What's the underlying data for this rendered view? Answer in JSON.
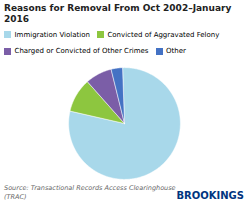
{
  "chart_data": {
    "type": "pie",
    "title": "Reasons for Removal From Oct 2002–January 2016",
    "categories": [
      "Immigration Violation",
      "Convicted of Aggravated Felony",
      "Charged or Convicted of Other Crimes",
      "Other"
    ],
    "values": [
      72,
      9,
      7,
      3
    ],
    "colors": [
      "#a8d8ea",
      "#8dc63f",
      "#7b5ea7",
      "#4472c4"
    ],
    "legend": "top",
    "annotations": [
      "Source: Transactional Records Access Clearinghouse\n(TRAC)",
      "BROOKINGS"
    ]
  }
}
